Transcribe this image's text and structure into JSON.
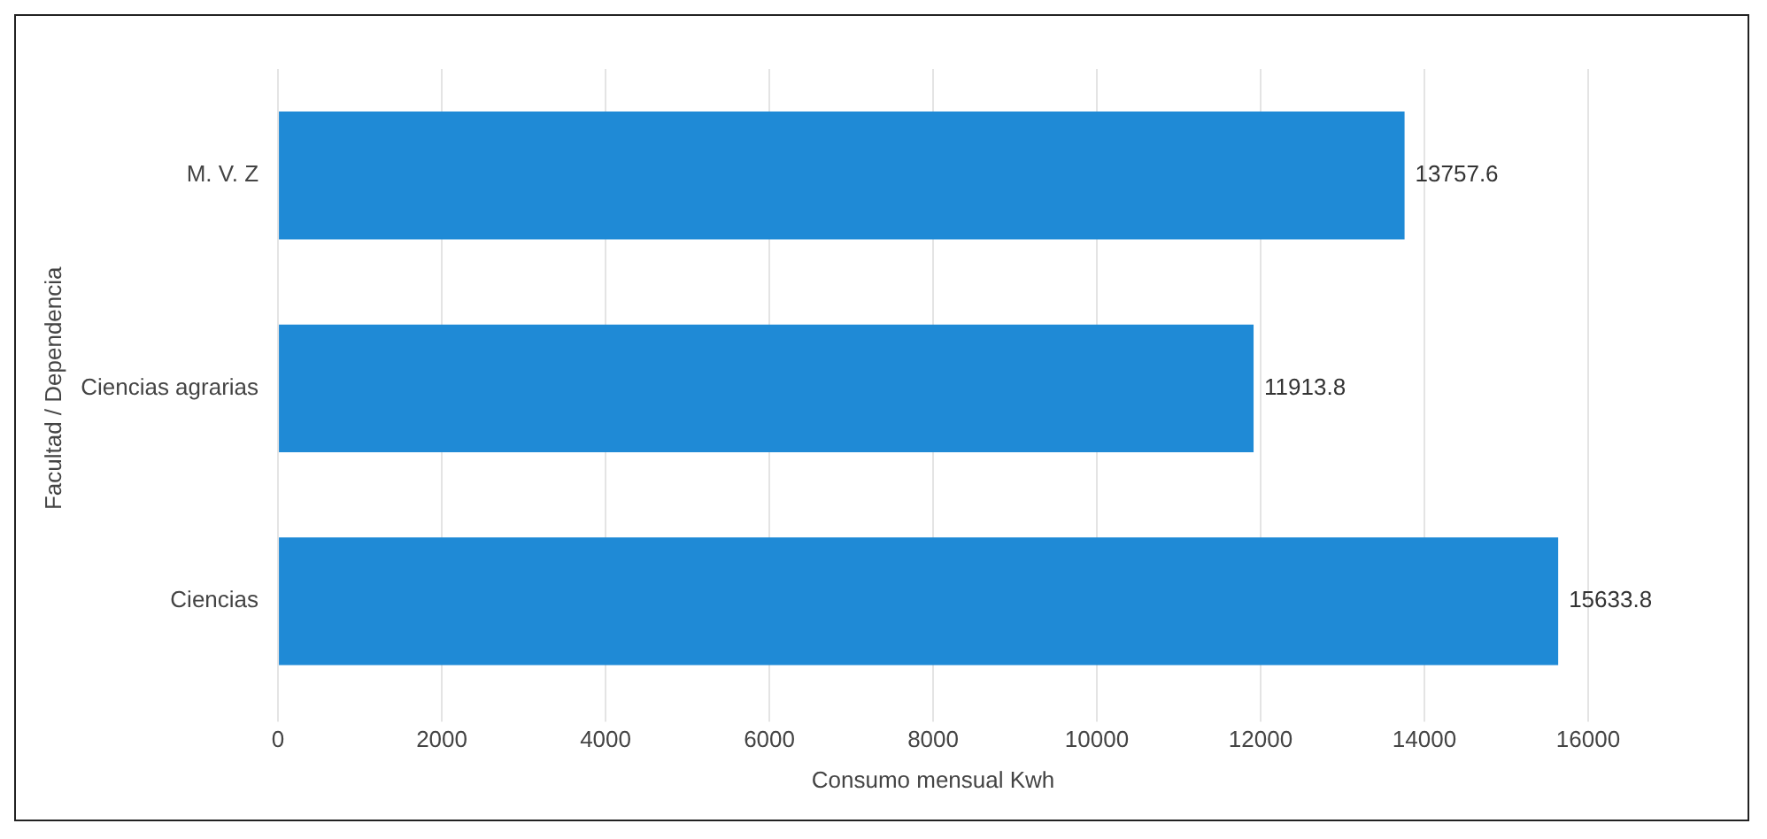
{
  "chart_data": {
    "type": "bar",
    "orientation": "horizontal",
    "xlabel": "Consumo mensual Kwh",
    "ylabel": "Facultad / Dependencia",
    "categories": [
      "M. V. Z",
      "Ciencias agrarias",
      "Ciencias"
    ],
    "values": [
      13757.6,
      11913.8,
      15633.8
    ],
    "color": "#1f8ad6",
    "data_labels": true,
    "xlim": [
      0,
      16000
    ],
    "xticks": [
      0,
      2000,
      4000,
      6000,
      8000,
      10000,
      12000,
      14000,
      16000
    ],
    "grid": "x",
    "legend": false
  }
}
